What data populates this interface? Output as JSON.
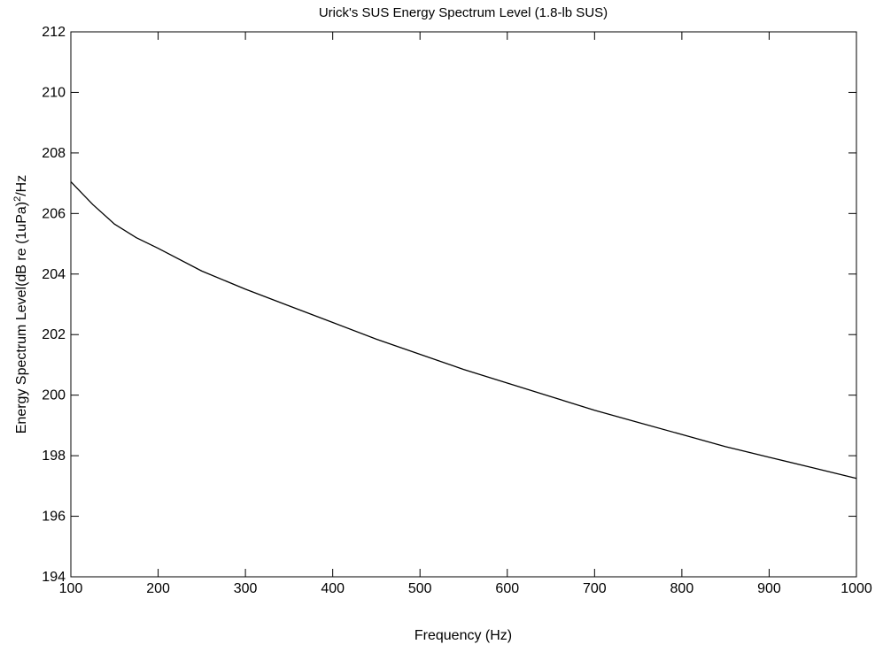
{
  "chart_data": {
    "type": "line",
    "title": "Urick's SUS Energy Spectrum Level (1.8-lb SUS)",
    "xlabel": "Frequency (Hz)",
    "ylabel_main": "Energy Spectrum Level(dB re (1uPa)",
    "ylabel_sup": "2",
    "ylabel_tail": "/Hz",
    "xlim": [
      100,
      1000
    ],
    "ylim": [
      194,
      212
    ],
    "xticks": [
      100,
      200,
      300,
      400,
      500,
      600,
      700,
      800,
      900,
      1000
    ],
    "yticks": [
      194,
      196,
      198,
      200,
      202,
      204,
      206,
      208,
      210,
      212
    ],
    "grid": false,
    "line_color": "#000000",
    "series": [
      {
        "x": [
          100,
          125,
          150,
          175,
          200,
          250,
          300,
          350,
          400,
          450,
          500,
          550,
          600,
          650,
          700,
          750,
          800,
          850,
          900,
          950,
          1000
        ],
        "y": [
          207.05,
          206.3,
          205.65,
          205.2,
          204.85,
          204.1,
          203.5,
          202.95,
          202.4,
          201.85,
          201.35,
          200.85,
          200.4,
          199.95,
          199.5,
          199.1,
          198.7,
          198.3,
          197.95,
          197.6,
          197.25
        ]
      }
    ]
  }
}
